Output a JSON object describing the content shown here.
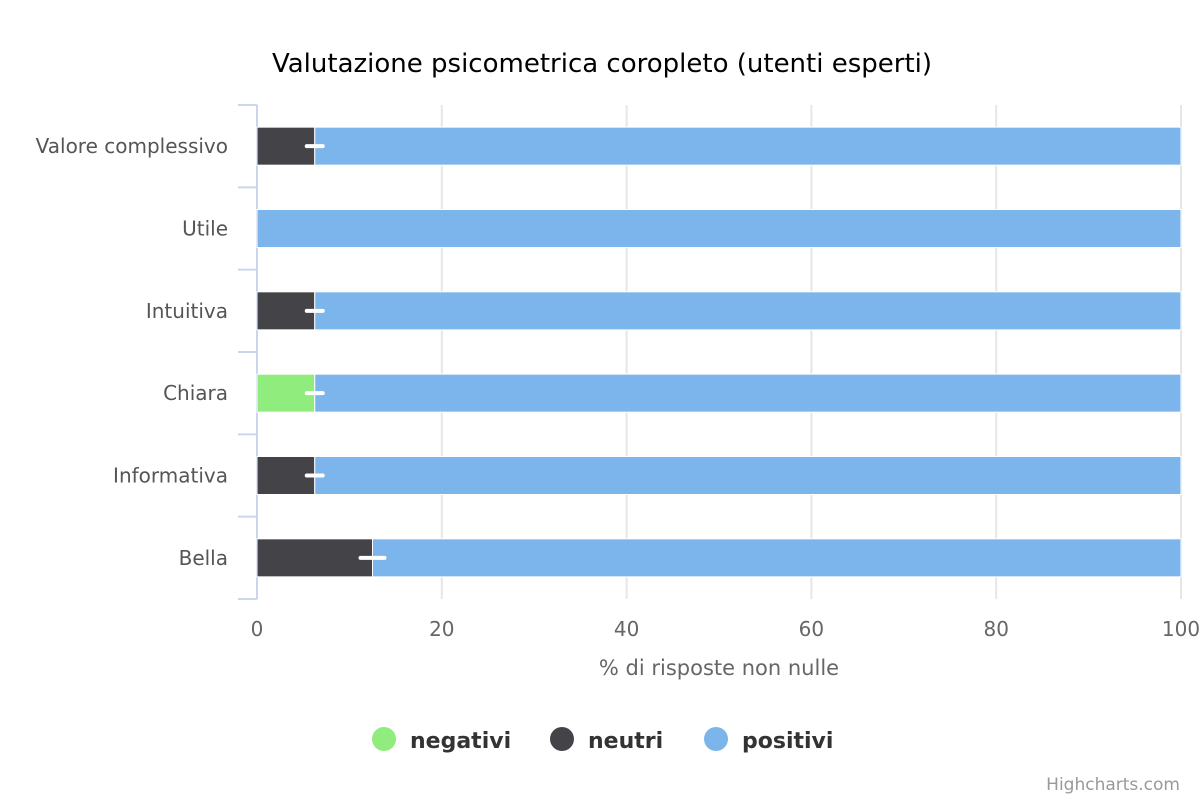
{
  "chart_data": {
    "type": "bar",
    "orientation": "horizontal",
    "stacked": true,
    "title": "Valutazione psicometrica coropleto (utenti esperti)",
    "categories": [
      "Valore complessivo",
      "Utile",
      "Intuitiva",
      "Chiara",
      "Informativa",
      "Bella"
    ],
    "series": [
      {
        "name": "negativi",
        "color": "#90ed7d",
        "values": [
          0,
          0,
          0,
          6.25,
          0,
          0
        ]
      },
      {
        "name": "neutri",
        "color": "#434348",
        "values": [
          6.25,
          0,
          6.25,
          0,
          6.25,
          12.5
        ]
      },
      {
        "name": "positivi",
        "color": "#7cb5ec",
        "values": [
          93.75,
          100,
          93.75,
          93.75,
          93.75,
          87.5
        ]
      }
    ],
    "error_markers": [
      6.25,
      null,
      6.25,
      6.25,
      6.25,
      12.5
    ],
    "xlabel": "% di risposte non nulle",
    "xlim": [
      0,
      100
    ],
    "x_ticks": [
      0,
      20,
      40,
      60,
      80,
      100
    ],
    "grid": true,
    "legend_position": "bottom",
    "credits": "Highcharts.com"
  }
}
